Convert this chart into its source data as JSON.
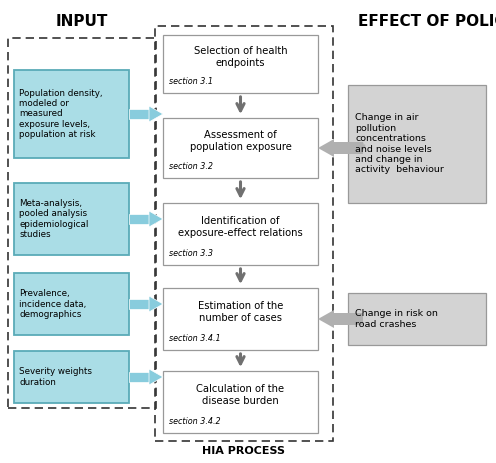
{
  "bg_color": "#ffffff",
  "input_label": "INPUT",
  "hia_label": "HIA PROCESS",
  "effect_label": "EFFECT OF POLIC",
  "input_boxes": [
    "Population density,\nmodeled or\nmeasured\nexposure levels,\npopulation at risk",
    "Meta-analysis,\npooled analysis\nepidemiological\nstudies",
    "Prevalence,\nincidence data,\ndemographics",
    "Severity weights\nduration"
  ],
  "hia_boxes": [
    {
      "main": "Selection of health\nendpoints",
      "section": "section 3.1"
    },
    {
      "main": "Assessment of\npopulation exposure",
      "section": "section 3.2"
    },
    {
      "main": "Identification of\nexposure-effect relations",
      "section": "section 3.3"
    },
    {
      "main": "Estimation of the\nnumber of cases",
      "section": "section 3.4.1"
    },
    {
      "main": "Calculation of the\ndisease burden",
      "section": "section 3.4.2"
    }
  ],
  "effect_boxes": [
    "Change in air\npollution\nconcentrations\nand noise levels\nand change in\nactivity  behaviour",
    "Change in risk on\nroad crashes"
  ],
  "input_box_color": "#aadde6",
  "input_box_edge": "#5aabb8",
  "hia_box_color": "#ffffff",
  "hia_box_edge": "#999999",
  "effect_box_color": "#d3d3d3",
  "effect_box_edge": "#999999",
  "vert_arrow_color": "#707070",
  "dashed_border_color": "#333333",
  "input_arrow_color": "#88ccdd",
  "effect_arrow_color": "#b0b0b0"
}
